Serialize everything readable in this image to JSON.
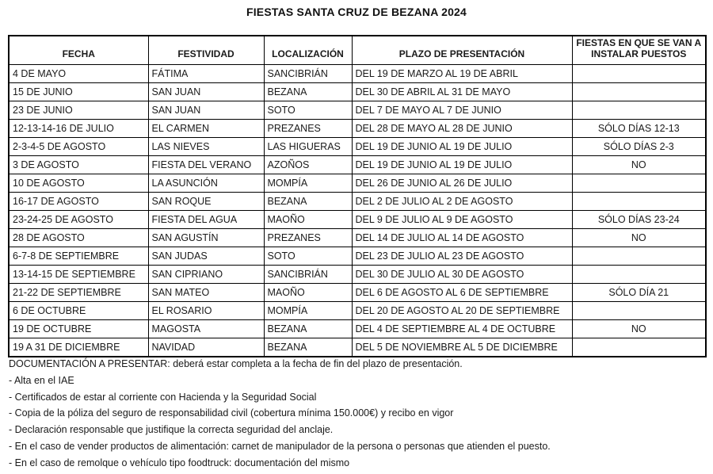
{
  "title": "FIESTAS SANTA CRUZ DE BEZANA 2024",
  "colors": {
    "border": "#000000",
    "text": "#1a1a1a",
    "background": "#ffffff"
  },
  "table": {
    "headers": [
      "FECHA",
      "FESTIVIDAD",
      "LOCALIZACIÓN",
      "PLAZO DE PRESENTACIÓN",
      "FIESTAS EN QUE SE VAN A INSTALAR PUESTOS"
    ],
    "rows": [
      [
        "4 DE MAYO",
        "FÁTIMA",
        "SANCIBRIÁN",
        "DEL 19 DE MARZO AL 19 DE ABRIL",
        ""
      ],
      [
        "15 DE JUNIO",
        "SAN JUAN",
        "BEZANA",
        "DEL 30 DE ABRIL AL 31 DE MAYO",
        ""
      ],
      [
        "23 DE JUNIO",
        "SAN JUAN",
        "SOTO",
        "DEL 7 DE MAYO AL 7 DE JUNIO",
        ""
      ],
      [
        "12-13-14-16 DE JULIO",
        "EL CARMEN",
        "PREZANES",
        "DEL 28 DE MAYO AL 28 DE JUNIO",
        "SÓLO DÍAS 12-13"
      ],
      [
        "2-3-4-5 DE AGOSTO",
        "LAS NIEVES",
        "LAS HIGUERAS",
        "DEL 19 DE JUNIO AL 19 DE JULIO",
        "SÓLO DÍAS 2-3"
      ],
      [
        "3 DE AGOSTO",
        "FIESTA DEL VERANO",
        "AZOÑOS",
        "DEL 19 DE JUNIO AL 19 DE JULIO",
        "NO"
      ],
      [
        "10 DE AGOSTO",
        "LA ASUNCIÓN",
        "MOMPÍA",
        "DEL 26 DE JUNIO AL 26 DE JULIO",
        ""
      ],
      [
        "16-17 DE AGOSTO",
        "SAN ROQUE",
        "BEZANA",
        "DEL 2 DE JULIO AL 2 DE AGOSTO",
        ""
      ],
      [
        "23-24-25 DE AGOSTO",
        "FIESTA DEL AGUA",
        "MAOÑO",
        "DEL 9 DE JULIO AL 9 DE AGOSTO",
        "SÓLO DÍAS 23-24"
      ],
      [
        "28 DE AGOSTO",
        "SAN AGUSTÍN",
        "PREZANES",
        "DEL 14 DE JULIO AL 14 DE AGOSTO",
        "NO"
      ],
      [
        "6-7-8 DE SEPTIEMBRE",
        "SAN JUDAS",
        "SOTO",
        "DEL 23 DE JULIO AL 23 DE AGOSTO",
        ""
      ],
      [
        "13-14-15 DE SEPTIEMBRE",
        "SAN CIPRIANO",
        "SANCIBRIÁN",
        "DEL 30 DE JULIO AL 30 DE AGOSTO",
        ""
      ],
      [
        "21-22 DE SEPTIEMBRE",
        "SAN MATEO",
        "MAOÑO",
        "DEL 6 DE AGOSTO AL 6 DE SEPTIEMBRE",
        "SÓLO DÍA 21"
      ],
      [
        "6 DE OCTUBRE",
        "EL ROSARIO",
        "MOMPÍA",
        "DEL 20 DE AGOSTO AL 20 DE SEPTIEMBRE",
        ""
      ],
      [
        "19 DE OCTUBRE",
        "MAGOSTA",
        "BEZANA",
        "DEL 4 DE SEPTIEMBRE AL 4 DE OCTUBRE",
        "NO"
      ],
      [
        "19 A 31 DE DICIEMBRE",
        "NAVIDAD",
        "BEZANA",
        "DEL 5 DE NOVIEMBRE AL 5 DE DICIEMBRE",
        ""
      ]
    ],
    "cell_names": [
      "cell-fecha",
      "cell-festividad",
      "cell-localizacion",
      "cell-plazo",
      "cell-puestos"
    ]
  },
  "notes": [
    "DOCUMENTACIÓN A PRESENTAR: deberá estar completa a la fecha de fin del plazo de presentación.",
    "- Alta en el IAE",
    "- Certificados de estar al corriente con Hacienda y la Seguridad Social",
    "- Copia de la póliza del seguro de responsabilidad civil (cobertura mínima 150.000€) y recibo en vigor",
    "- Declaración responsable que justifique la correcta seguridad del anclaje.",
    "- En el caso de vender productos de alimentación: carnet de manipulador de la persona o personas que atienden el puesto.",
    "- En el caso de remolque o vehículo tipo foodtruck: documentación del mismo"
  ]
}
